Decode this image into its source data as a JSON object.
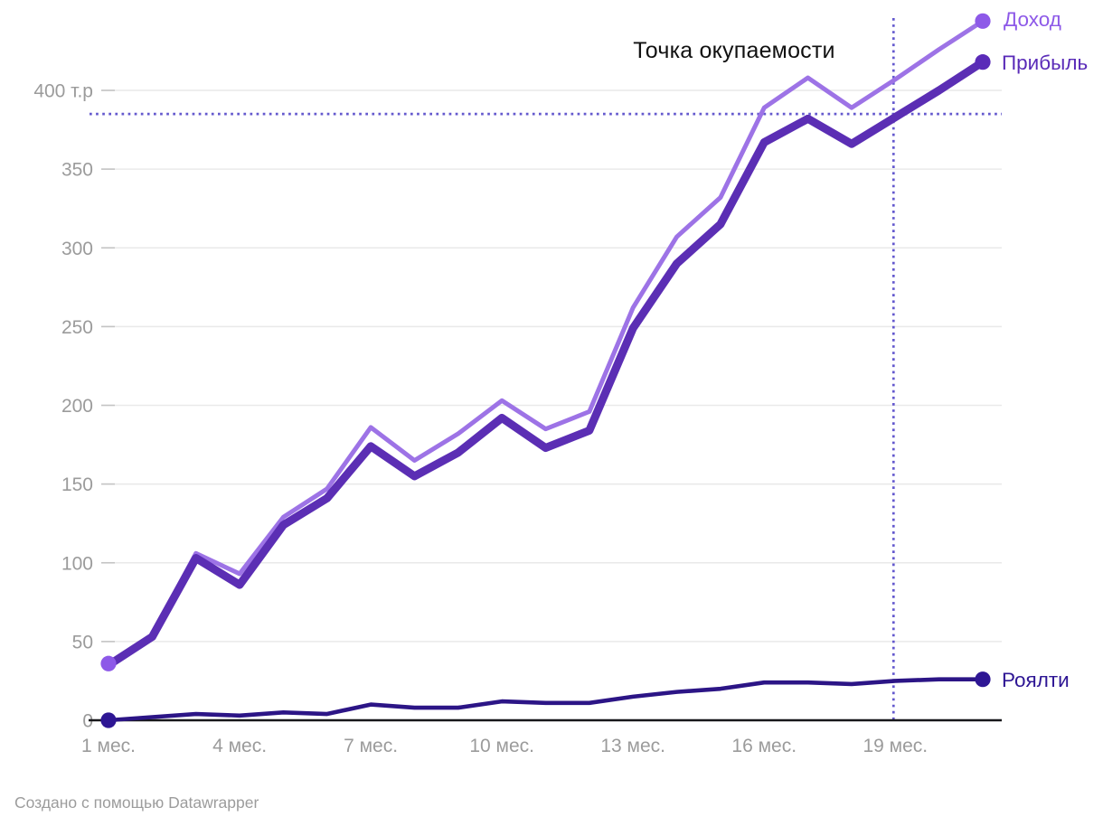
{
  "chart_data": {
    "type": "line",
    "x": [
      1,
      2,
      3,
      4,
      5,
      6,
      7,
      8,
      9,
      10,
      11,
      12,
      13,
      14,
      15,
      16,
      17,
      18,
      19,
      20,
      21
    ],
    "series": [
      {
        "key": "income",
        "name": "Доход",
        "color": "#9d73e6",
        "label_color": "#8d59e8",
        "line_width": 5,
        "start_dot": true,
        "end_dot": true,
        "values": [
          36,
          54,
          106,
          93,
          129,
          147,
          186,
          165,
          182,
          203,
          185,
          196,
          262,
          307,
          332,
          389,
          408,
          389,
          407,
          426,
          444
        ]
      },
      {
        "key": "profit",
        "name": "Прибыль",
        "color": "#5b2eb4",
        "label_color": "#5a2bb8",
        "line_width": 9,
        "start_dot": false,
        "end_dot": true,
        "values": [
          35,
          53,
          103,
          86,
          124,
          141,
          174,
          155,
          170,
          192,
          173,
          184,
          249,
          290,
          315,
          367,
          382,
          366,
          383,
          400,
          418
        ]
      },
      {
        "key": "royalty",
        "name": "Роялти",
        "color": "#2c1586",
        "label_color": "#2e1694",
        "line_width": 4.6,
        "start_dot": true,
        "end_dot": true,
        "values": [
          0,
          2,
          4,
          3,
          5,
          4,
          10,
          8,
          8,
          12,
          11,
          11,
          15,
          18,
          20,
          24,
          24,
          23,
          25,
          26,
          26
        ]
      }
    ],
    "y_ticks": [
      {
        "value": 0,
        "label": "0"
      },
      {
        "value": 50,
        "label": "50"
      },
      {
        "value": 100,
        "label": "100"
      },
      {
        "value": 150,
        "label": "150"
      },
      {
        "value": 200,
        "label": "200"
      },
      {
        "value": 250,
        "label": "250"
      },
      {
        "value": 300,
        "label": "300"
      },
      {
        "value": 350,
        "label": "350"
      },
      {
        "value": 400,
        "label": "400 т.р"
      }
    ],
    "x_ticks": [
      {
        "value": 1,
        "label": "1 мес."
      },
      {
        "value": 4,
        "label": "4 мес."
      },
      {
        "value": 7,
        "label": "7 мес."
      },
      {
        "value": 10,
        "label": "10 мес."
      },
      {
        "value": 13,
        "label": "13 мес."
      },
      {
        "value": 16,
        "label": "16 мес."
      },
      {
        "value": 19,
        "label": "19 мес."
      }
    ],
    "ylim": [
      0,
      450
    ],
    "xlim": [
      1,
      21
    ],
    "grid": true,
    "legend_position": "right-end-of-lines",
    "annotation": {
      "text": "Точка окупаемости",
      "color": "#111111"
    },
    "breakeven": {
      "y_value": 385,
      "x_value": 19,
      "line_color": "#6459ce",
      "line_style": "dotted"
    },
    "axis_colors": {
      "grid": "#e9e9e9",
      "tick": "#c4c4c4",
      "labels": "#9b9b9b",
      "baseline": "#17171a"
    }
  },
  "footer": {
    "credit": "Создано с помощью Datawrapper"
  }
}
